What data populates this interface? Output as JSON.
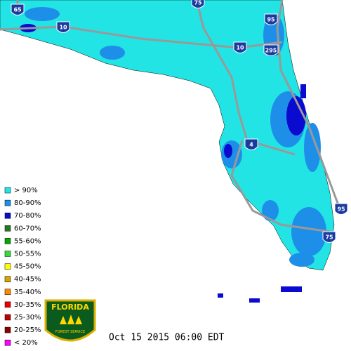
{
  "interstates": [
    "65",
    "75",
    "10",
    "95",
    "10",
    "295",
    "4",
    "95",
    "75"
  ],
  "legend": {
    "items": [
      {
        "label": "> 90%",
        "color": "#22e4e4"
      },
      {
        "label": "80-90%",
        "color": "#1e8fe8"
      },
      {
        "label": "70-80%",
        "color": "#0a0ad0"
      },
      {
        "label": "60-70%",
        "color": "#1f7a1f"
      },
      {
        "label": "55-60%",
        "color": "#00a800"
      },
      {
        "label": "50-55%",
        "color": "#33dd33"
      },
      {
        "label": "45-50%",
        "color": "#ffff00"
      },
      {
        "label": "40-45%",
        "color": "#d9a400"
      },
      {
        "label": "35-40%",
        "color": "#ff8800"
      },
      {
        "label": "30-35%",
        "color": "#ee0000"
      },
      {
        "label": "25-30%",
        "color": "#c00000"
      },
      {
        "label": "20-25%",
        "color": "#8b0000"
      },
      {
        "label": "< 20%",
        "color": "#ff00ff"
      }
    ]
  },
  "logo": {
    "title": "FLORIDA",
    "subtitle": "FOREST SERVICE"
  },
  "timestamp": "Oct 15 2015 06:00 EDT"
}
